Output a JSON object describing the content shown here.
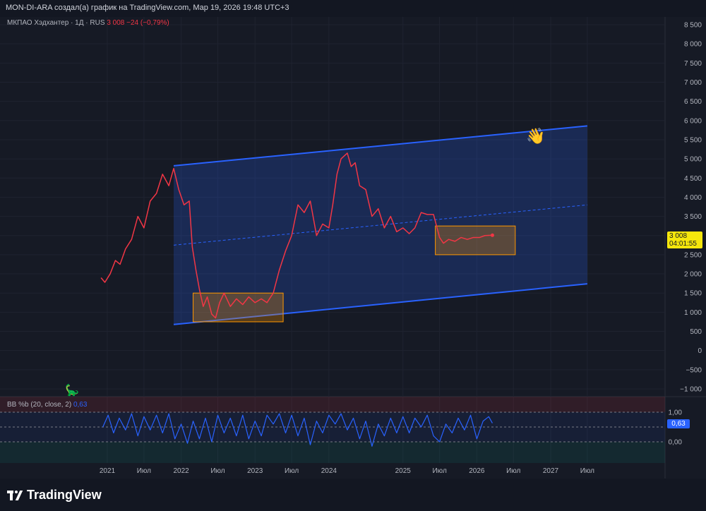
{
  "header": {
    "text": "MON-DI-ARA создал(а) график на TradingView.com, Мар 19, 2026 19:48 UTC+3"
  },
  "legend": {
    "symbol": "МКПАО Хэдхантер · 1Д · RUS",
    "price": "3 008",
    "change": "−24 (−0,79%)"
  },
  "indicator": {
    "label": "BB %b (20, close, 2)",
    "value": "0,63"
  },
  "price_tag": {
    "value": "3 008",
    "timer": "04:01:55"
  },
  "brand": "TradingView",
  "colors": {
    "background": "#161a25",
    "price_line": "#f23645",
    "channel": "#2962ff",
    "zone": "#ff9800",
    "indicator": "#2962ff"
  },
  "icons": [
    "dinosaur-icon",
    "waving-hand-icon",
    "tradingview-logo-icon"
  ],
  "chart_data": [
    {
      "type": "line",
      "title": "",
      "y_axis": {
        "range": [
          -1000,
          8500
        ],
        "ticks": [
          "8 500",
          "8 000",
          "7 500",
          "7 000",
          "6 500",
          "6 000",
          "5 500",
          "5 000",
          "4 500",
          "4 000",
          "3 500",
          "3 000",
          "2 500",
          "2 000",
          "1 500",
          "1 000",
          "500",
          "0",
          "−500",
          "−1 000"
        ],
        "position": "right"
      },
      "x_axis": {
        "ticks": [
          "2021",
          "Июл",
          "2022",
          "Июл",
          "2023",
          "Июл",
          "2024",
          "2025",
          "Июл",
          "2026",
          "Июл",
          "2027",
          "Июл"
        ]
      },
      "series": [
        {
          "points": [
            [
              "2020-12-01",
              1900
            ],
            [
              "2020-12-20",
              1780
            ],
            [
              "2021-01-15",
              2000
            ],
            [
              "2021-02-10",
              2350
            ],
            [
              "2021-03-05",
              2250
            ],
            [
              "2021-04-01",
              2650
            ],
            [
              "2021-05-01",
              2900
            ],
            [
              "2021-06-01",
              3500
            ],
            [
              "2021-07-01",
              3200
            ],
            [
              "2021-08-01",
              3900
            ],
            [
              "2021-09-01",
              4100
            ],
            [
              "2021-10-01",
              4600
            ],
            [
              "2021-11-01",
              4300
            ],
            [
              "2021-11-25",
              4750
            ],
            [
              "2021-12-20",
              4200
            ],
            [
              "2022-01-15",
              3800
            ],
            [
              "2022-02-10",
              3900
            ],
            [
              "2022-02-25",
              2700
            ],
            [
              "2022-03-15",
              2100
            ],
            [
              "2022-04-01",
              1600
            ],
            [
              "2022-04-20",
              1150
            ],
            [
              "2022-05-10",
              1400
            ],
            [
              "2022-06-01",
              950
            ],
            [
              "2022-06-20",
              850
            ],
            [
              "2022-07-10",
              1250
            ],
            [
              "2022-08-01",
              1500
            ],
            [
              "2022-09-01",
              1150
            ],
            [
              "2022-10-01",
              1350
            ],
            [
              "2022-11-01",
              1200
            ],
            [
              "2022-12-01",
              1400
            ],
            [
              "2023-01-01",
              1250
            ],
            [
              "2023-02-01",
              1350
            ],
            [
              "2023-03-01",
              1250
            ],
            [
              "2023-04-01",
              1500
            ],
            [
              "2023-05-01",
              2100
            ],
            [
              "2023-06-01",
              2600
            ],
            [
              "2023-07-01",
              3000
            ],
            [
              "2023-08-01",
              3800
            ],
            [
              "2023-09-01",
              3600
            ],
            [
              "2023-10-01",
              3900
            ],
            [
              "2023-11-01",
              3000
            ],
            [
              "2023-12-01",
              3300
            ],
            [
              "2024-01-01",
              3200
            ],
            [
              "2024-01-20",
              3800
            ],
            [
              "2024-02-10",
              4600
            ],
            [
              "2024-03-01",
              5000
            ],
            [
              "2024-04-01",
              5150
            ],
            [
              "2024-04-20",
              4800
            ],
            [
              "2024-05-10",
              4900
            ],
            [
              "2024-06-01",
              4300
            ],
            [
              "2024-07-01",
              4200
            ],
            [
              "2024-08-01",
              3500
            ],
            [
              "2024-09-01",
              3700
            ],
            [
              "2024-10-01",
              3200
            ],
            [
              "2024-11-01",
              3500
            ],
            [
              "2024-12-01",
              3100
            ],
            [
              "2025-01-01",
              3200
            ],
            [
              "2025-02-01",
              3050
            ],
            [
              "2025-03-01",
              3200
            ],
            [
              "2025-04-01",
              3600
            ],
            [
              "2025-05-01",
              3550
            ],
            [
              "2025-06-01",
              3550
            ],
            [
              "2025-07-01",
              2950
            ],
            [
              "2025-07-20",
              2800
            ],
            [
              "2025-08-15",
              2900
            ],
            [
              "2025-09-15",
              2850
            ],
            [
              "2025-10-15",
              2950
            ],
            [
              "2025-11-15",
              2900
            ],
            [
              "2025-12-15",
              2950
            ],
            [
              "2026-01-15",
              2950
            ],
            [
              "2026-02-10",
              3000
            ],
            [
              "2026-03-19",
              3008
            ]
          ]
        }
      ],
      "annotations": {
        "channel": "parallel",
        "zones": 2
      }
    },
    {
      "type": "line",
      "title": "",
      "y_axis": {
        "ticks": [
          "1,00",
          "0,00"
        ]
      },
      "series": [
        {
          "points": [
            [
              "2020-12-10",
              0.5
            ],
            [
              "2021-01-05",
              0.9
            ],
            [
              "2021-02-01",
              0.3
            ],
            [
              "2021-03-01",
              0.8
            ],
            [
              "2021-04-01",
              0.4
            ],
            [
              "2021-05-01",
              0.95
            ],
            [
              "2021-06-01",
              0.2
            ],
            [
              "2021-07-01",
              0.85
            ],
            [
              "2021-08-01",
              0.4
            ],
            [
              "2021-09-01",
              0.9
            ],
            [
              "2021-10-01",
              0.3
            ],
            [
              "2021-11-01",
              0.95
            ],
            [
              "2021-12-01",
              0.1
            ],
            [
              "2022-01-01",
              0.6
            ],
            [
              "2022-02-01",
              -0.05
            ],
            [
              "2022-03-01",
              0.7
            ],
            [
              "2022-04-01",
              0.1
            ],
            [
              "2022-05-01",
              0.8
            ],
            [
              "2022-06-01",
              0.0
            ],
            [
              "2022-07-01",
              0.9
            ],
            [
              "2022-08-01",
              0.3
            ],
            [
              "2022-09-01",
              0.8
            ],
            [
              "2022-10-01",
              0.2
            ],
            [
              "2022-11-01",
              0.9
            ],
            [
              "2022-12-01",
              0.1
            ],
            [
              "2023-01-01",
              0.7
            ],
            [
              "2023-02-01",
              0.2
            ],
            [
              "2023-03-01",
              0.9
            ],
            [
              "2023-04-01",
              0.6
            ],
            [
              "2023-05-01",
              0.95
            ],
            [
              "2023-06-01",
              0.3
            ],
            [
              "2023-07-01",
              0.9
            ],
            [
              "2023-08-01",
              0.2
            ],
            [
              "2023-09-01",
              0.8
            ],
            [
              "2023-10-01",
              -0.1
            ],
            [
              "2023-11-01",
              0.7
            ],
            [
              "2023-12-01",
              0.3
            ],
            [
              "2024-01-01",
              0.9
            ],
            [
              "2024-02-01",
              0.6
            ],
            [
              "2024-03-01",
              0.95
            ],
            [
              "2024-04-01",
              0.4
            ],
            [
              "2024-05-01",
              0.8
            ],
            [
              "2024-06-01",
              0.1
            ],
            [
              "2024-07-01",
              0.7
            ],
            [
              "2024-08-01",
              -0.15
            ],
            [
              "2024-09-01",
              0.6
            ],
            [
              "2024-10-01",
              0.2
            ],
            [
              "2024-11-01",
              0.8
            ],
            [
              "2024-12-01",
              0.3
            ],
            [
              "2025-01-01",
              0.85
            ],
            [
              "2025-02-01",
              0.3
            ],
            [
              "2025-03-01",
              0.8
            ],
            [
              "2025-04-01",
              0.5
            ],
            [
              "2025-05-01",
              0.9
            ],
            [
              "2025-06-01",
              0.2
            ],
            [
              "2025-07-01",
              0.0
            ],
            [
              "2025-08-01",
              0.6
            ],
            [
              "2025-09-01",
              0.3
            ],
            [
              "2025-10-01",
              0.8
            ],
            [
              "2025-11-01",
              0.4
            ],
            [
              "2025-12-01",
              0.9
            ],
            [
              "2026-01-01",
              0.1
            ],
            [
              "2026-02-01",
              0.7
            ],
            [
              "2026-03-01",
              0.85
            ],
            [
              "2026-03-19",
              0.63
            ]
          ]
        }
      ]
    }
  ]
}
